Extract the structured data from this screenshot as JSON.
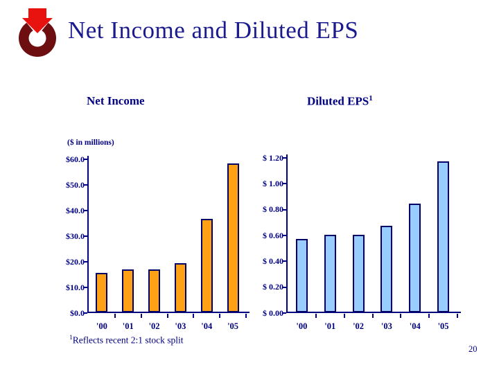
{
  "slide": {
    "title": "Net Income and Diluted EPS",
    "page_number": "20",
    "footnote": {
      "superscript": "1",
      "text": "Reflects recent 2:1 stock split"
    }
  },
  "theme": {
    "background": "#ffffff",
    "title_color": "#1b1b8e",
    "text_color": "#000080",
    "net_income_bar_color": "#FFA115",
    "diluted_eps_bar_color": "#99CCFF",
    "bar_border_color": "#000066",
    "logo_ring_color": "#6d0e10",
    "logo_arrow_color": "#e8130f"
  },
  "chart_data": [
    {
      "type": "bar",
      "title": "Net Income",
      "units_label": "($ in millions)",
      "categories": [
        "'00",
        "'01",
        "'02",
        "'03",
        "'04",
        "'05"
      ],
      "values": [
        15.5,
        16.8,
        16.8,
        19.2,
        36.5,
        58.0
      ],
      "ylim": [
        0,
        60
      ],
      "ytick_labels": [
        "$0.0",
        "$10.0",
        "$20.0",
        "$30.0",
        "$40.0",
        "$50.0",
        "$60.0"
      ],
      "bar_color": "#FFA115",
      "bar_border": "#000066",
      "grid": false,
      "legend": "none"
    },
    {
      "type": "bar",
      "title": "Diluted EPS",
      "title_superscript": "1",
      "categories": [
        "'00",
        "'01",
        "'02",
        "'03",
        "'04",
        "'05"
      ],
      "values": [
        0.57,
        0.6,
        0.6,
        0.67,
        0.84,
        1.17
      ],
      "ylim": [
        0,
        1.2
      ],
      "ytick_labels": [
        "$ 0.00",
        "$ 0.20",
        "$ 0.40",
        "$ 0.60",
        "$ 0.80",
        "$ 1.00",
        "$ 1.20"
      ],
      "bar_color": "#99CCFF",
      "bar_border": "#000066",
      "grid": false,
      "legend": "none"
    }
  ]
}
